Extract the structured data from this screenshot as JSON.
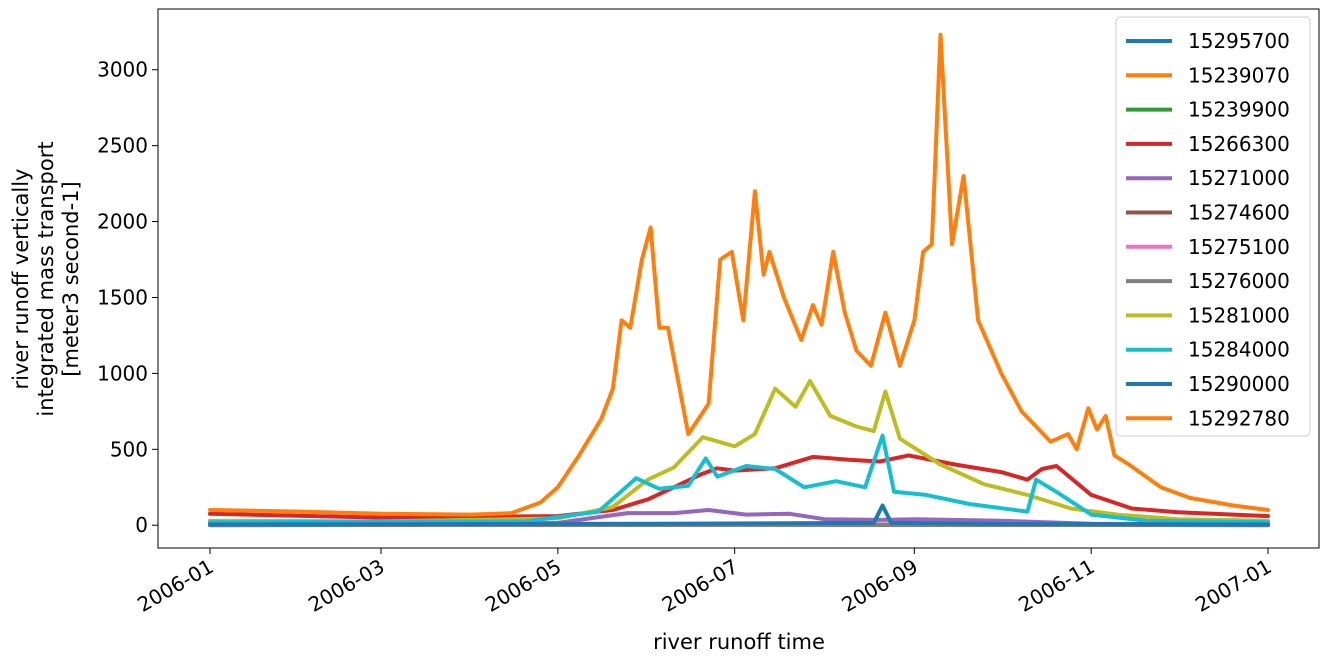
{
  "chart_data": {
    "type": "line",
    "xlabel": "river runoff time",
    "ylabel": [
      "river runoff vertically",
      "integrated mass transport",
      "[meter3 second-1]"
    ],
    "xlim": [
      "2006-01-01",
      "2007-01-01"
    ],
    "ylim": [
      -150,
      3400
    ],
    "x_ticks": [
      "2006-01",
      "2006-03",
      "2006-05",
      "2006-07",
      "2006-09",
      "2006-11",
      "2007-01"
    ],
    "y_ticks": [
      0,
      500,
      1000,
      1500,
      2000,
      2500,
      3000
    ],
    "grid": false,
    "legend_position": "top-right",
    "series": [
      {
        "name": "15295700",
        "color": "#1f77b4",
        "points": [
          [
            "2006-01-01",
            1
          ],
          [
            "2006-07-01",
            4
          ],
          [
            "2007-01-01",
            1
          ]
        ]
      },
      {
        "name": "15239070",
        "color": "#ff7f0e",
        "points": [
          [
            "2006-01-01",
            3
          ],
          [
            "2006-07-01",
            6
          ],
          [
            "2007-01-01",
            3
          ]
        ]
      },
      {
        "name": "15239900",
        "color": "#2ca02c",
        "points": [
          [
            "2006-01-01",
            2
          ],
          [
            "2006-07-01",
            5
          ],
          [
            "2007-01-01",
            2
          ]
        ]
      },
      {
        "name": "15266300",
        "color": "#d62728",
        "points": [
          [
            "2006-01-01",
            75
          ],
          [
            "2006-03-01",
            50
          ],
          [
            "2006-05-01",
            60
          ],
          [
            "2006-05-20",
            100
          ],
          [
            "2006-06-01",
            170
          ],
          [
            "2006-06-10",
            250
          ],
          [
            "2006-06-20",
            340
          ],
          [
            "2006-06-25",
            375
          ],
          [
            "2006-07-01",
            360
          ],
          [
            "2006-07-15",
            375
          ],
          [
            "2006-07-28",
            450
          ],
          [
            "2006-08-10",
            430
          ],
          [
            "2006-08-20",
            420
          ],
          [
            "2006-08-30",
            460
          ],
          [
            "2006-09-15",
            400
          ],
          [
            "2006-10-01",
            350
          ],
          [
            "2006-10-10",
            300
          ],
          [
            "2006-10-15",
            370
          ],
          [
            "2006-10-20",
            390
          ],
          [
            "2006-11-01",
            200
          ],
          [
            "2006-11-15",
            110
          ],
          [
            "2006-12-01",
            85
          ],
          [
            "2007-01-01",
            60
          ]
        ]
      },
      {
        "name": "15271000",
        "color": "#9467bd",
        "points": [
          [
            "2006-01-01",
            10
          ],
          [
            "2006-05-01",
            15
          ],
          [
            "2006-05-25",
            80
          ],
          [
            "2006-06-10",
            80
          ],
          [
            "2006-06-22",
            100
          ],
          [
            "2006-07-05",
            70
          ],
          [
            "2006-07-20",
            75
          ],
          [
            "2006-08-01",
            40
          ],
          [
            "2006-08-20",
            35
          ],
          [
            "2006-09-01",
            40
          ],
          [
            "2006-10-01",
            30
          ],
          [
            "2006-11-01",
            10
          ],
          [
            "2007-01-01",
            5
          ]
        ]
      },
      {
        "name": "15274600",
        "color": "#8c564b",
        "points": [
          [
            "2006-01-01",
            2
          ],
          [
            "2006-07-01",
            5
          ],
          [
            "2007-01-01",
            2
          ]
        ]
      },
      {
        "name": "15275100",
        "color": "#e377c2",
        "points": [
          [
            "2006-01-01",
            1
          ],
          [
            "2006-07-01",
            3
          ],
          [
            "2007-01-01",
            1
          ]
        ]
      },
      {
        "name": "15276000",
        "color": "#7f7f7f",
        "points": [
          [
            "2006-01-01",
            1
          ],
          [
            "2006-07-01",
            2
          ],
          [
            "2007-01-01",
            1
          ]
        ]
      },
      {
        "name": "15281000",
        "color": "#bcbd22",
        "points": [
          [
            "2006-01-01",
            30
          ],
          [
            "2006-03-01",
            25
          ],
          [
            "2006-05-01",
            45
          ],
          [
            "2006-05-20",
            120
          ],
          [
            "2006-06-01",
            300
          ],
          [
            "2006-06-10",
            380
          ],
          [
            "2006-06-20",
            580
          ],
          [
            "2006-07-01",
            520
          ],
          [
            "2006-07-08",
            600
          ],
          [
            "2006-07-15",
            900
          ],
          [
            "2006-07-22",
            780
          ],
          [
            "2006-07-27",
            950
          ],
          [
            "2006-08-03",
            720
          ],
          [
            "2006-08-12",
            650
          ],
          [
            "2006-08-18",
            620
          ],
          [
            "2006-08-22",
            880
          ],
          [
            "2006-08-27",
            570
          ],
          [
            "2006-09-10",
            400
          ],
          [
            "2006-09-25",
            270
          ],
          [
            "2006-10-10",
            200
          ],
          [
            "2006-10-25",
            110
          ],
          [
            "2006-11-10",
            70
          ],
          [
            "2006-12-01",
            40
          ],
          [
            "2007-01-01",
            30
          ]
        ]
      },
      {
        "name": "15284000",
        "color": "#17becf",
        "points": [
          [
            "2006-01-01",
            20
          ],
          [
            "2006-04-20",
            25
          ],
          [
            "2006-05-15",
            90
          ],
          [
            "2006-05-28",
            310
          ],
          [
            "2006-06-05",
            240
          ],
          [
            "2006-06-15",
            260
          ],
          [
            "2006-06-21",
            440
          ],
          [
            "2006-06-25",
            320
          ],
          [
            "2006-07-05",
            390
          ],
          [
            "2006-07-15",
            370
          ],
          [
            "2006-07-25",
            250
          ],
          [
            "2006-08-05",
            290
          ],
          [
            "2006-08-15",
            250
          ],
          [
            "2006-08-21",
            590
          ],
          [
            "2006-08-25",
            220
          ],
          [
            "2006-09-05",
            200
          ],
          [
            "2006-09-20",
            140
          ],
          [
            "2006-10-10",
            90
          ],
          [
            "2006-10-13",
            300
          ],
          [
            "2006-10-20",
            220
          ],
          [
            "2006-11-01",
            70
          ],
          [
            "2006-11-20",
            30
          ],
          [
            "2007-01-01",
            20
          ]
        ]
      },
      {
        "name": "15290000",
        "color": "#1f77b4",
        "points": [
          [
            "2006-01-01",
            5
          ],
          [
            "2006-06-05",
            10
          ],
          [
            "2006-08-18",
            15
          ],
          [
            "2006-08-21",
            130
          ],
          [
            "2006-08-24",
            15
          ],
          [
            "2006-10-01",
            8
          ],
          [
            "2007-01-01",
            5
          ]
        ]
      },
      {
        "name": "15292780",
        "color": "#ff7f0e",
        "points": [
          [
            "2006-01-01",
            100
          ],
          [
            "2006-02-01",
            90
          ],
          [
            "2006-03-01",
            75
          ],
          [
            "2006-04-01",
            70
          ],
          [
            "2006-04-15",
            80
          ],
          [
            "2006-04-25",
            150
          ],
          [
            "2006-05-01",
            250
          ],
          [
            "2006-05-08",
            450
          ],
          [
            "2006-05-16",
            700
          ],
          [
            "2006-05-20",
            900
          ],
          [
            "2006-05-23",
            1350
          ],
          [
            "2006-05-26",
            1300
          ],
          [
            "2006-05-30",
            1750
          ],
          [
            "2006-06-02",
            1960
          ],
          [
            "2006-06-05",
            1300
          ],
          [
            "2006-06-08",
            1300
          ],
          [
            "2006-06-15",
            600
          ],
          [
            "2006-06-22",
            800
          ],
          [
            "2006-06-26",
            1750
          ],
          [
            "2006-06-30",
            1800
          ],
          [
            "2006-07-04",
            1350
          ],
          [
            "2006-07-08",
            2200
          ],
          [
            "2006-07-11",
            1650
          ],
          [
            "2006-07-13",
            1800
          ],
          [
            "2006-07-18",
            1500
          ],
          [
            "2006-07-24",
            1220
          ],
          [
            "2006-07-28",
            1450
          ],
          [
            "2006-07-31",
            1320
          ],
          [
            "2006-08-04",
            1800
          ],
          [
            "2006-08-08",
            1400
          ],
          [
            "2006-08-12",
            1150
          ],
          [
            "2006-08-17",
            1050
          ],
          [
            "2006-08-22",
            1400
          ],
          [
            "2006-08-27",
            1050
          ],
          [
            "2006-09-01",
            1350
          ],
          [
            "2006-09-04",
            1800
          ],
          [
            "2006-09-07",
            1850
          ],
          [
            "2006-09-10",
            3230
          ],
          [
            "2006-09-14",
            1850
          ],
          [
            "2006-09-18",
            2300
          ],
          [
            "2006-09-23",
            1350
          ],
          [
            "2006-10-01",
            1000
          ],
          [
            "2006-10-08",
            750
          ],
          [
            "2006-10-18",
            550
          ],
          [
            "2006-10-24",
            600
          ],
          [
            "2006-10-27",
            500
          ],
          [
            "2006-10-31",
            770
          ],
          [
            "2006-11-03",
            630
          ],
          [
            "2006-11-06",
            720
          ],
          [
            "2006-11-09",
            460
          ],
          [
            "2006-11-14",
            400
          ],
          [
            "2006-11-25",
            250
          ],
          [
            "2006-12-05",
            180
          ],
          [
            "2006-12-20",
            130
          ],
          [
            "2007-01-01",
            100
          ]
        ]
      }
    ]
  }
}
